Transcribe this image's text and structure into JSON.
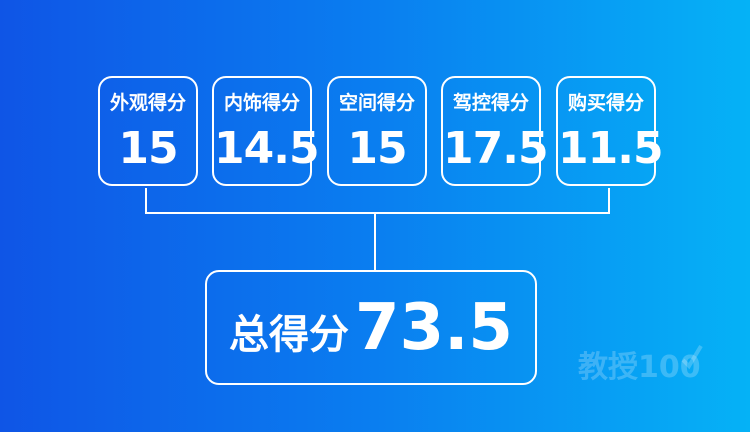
{
  "scores": [
    {
      "label": "外观得分",
      "value": "15"
    },
    {
      "label": "内饰得分",
      "value": "14.5"
    },
    {
      "label": "空间得分",
      "value": "15"
    },
    {
      "label": "驾控得分",
      "value": "17.5"
    },
    {
      "label": "购买得分",
      "value": "11.5"
    }
  ],
  "total": {
    "label": "总得分",
    "value": "73.5"
  },
  "watermark": "教授100",
  "colors": {
    "gradient_start": "#0f55e6",
    "gradient_end": "#05b2f6"
  }
}
